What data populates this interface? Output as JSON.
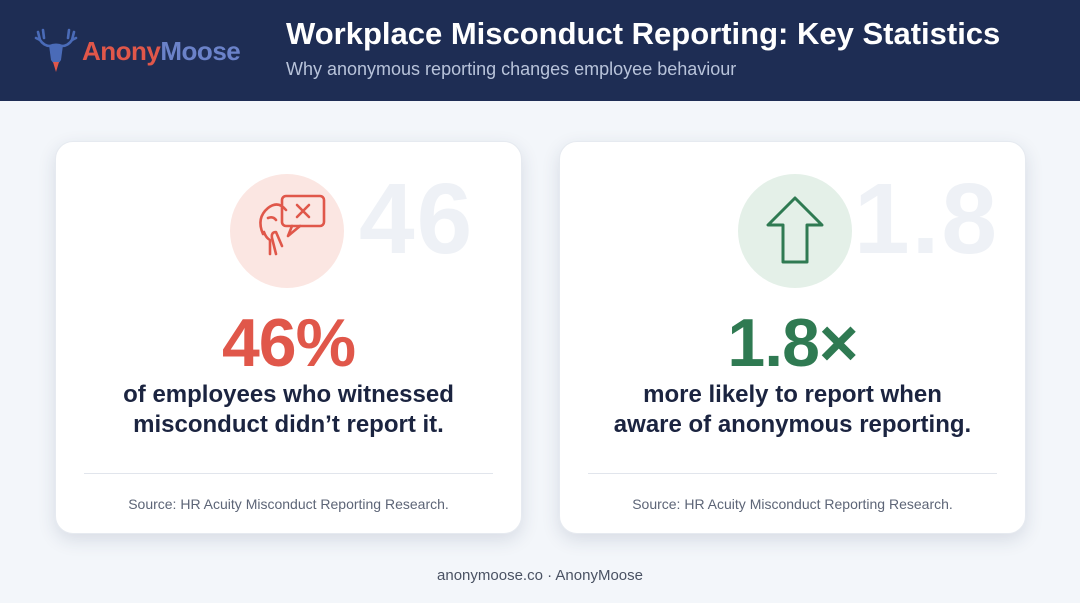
{
  "header": {
    "logo_part1": "Anony",
    "logo_part2": "Moose",
    "title": "Workplace Misconduct Reporting: Key Statistics",
    "subtitle": "Why anonymous reporting changes employee behaviour"
  },
  "cards": [
    {
      "ghost_number": "46",
      "icon": "speech-bubble-no-report-icon",
      "stat": "46%",
      "stat_color": "#e0574a",
      "desc_line1": "of employees who witnessed",
      "desc_line2": "misconduct didn’t report it.",
      "source": "Source: HR Acuity Misconduct Reporting Research."
    },
    {
      "ghost_number": "1.8",
      "icon": "arrow-up-icon",
      "stat": "1.8×",
      "stat_color": "#2f7a52",
      "desc_line1": "more likely to report when",
      "desc_line2": "aware of anonymous reporting.",
      "source": "Source: HR Acuity Misconduct Reporting Research."
    }
  ],
  "footer": {
    "text": "anonymoose.co · AnonyMoose"
  },
  "colors": {
    "header_bg": "#1e2d54",
    "accent_red": "#e0574a",
    "accent_green": "#2f7a52",
    "logo_blue": "#6b82c9"
  }
}
